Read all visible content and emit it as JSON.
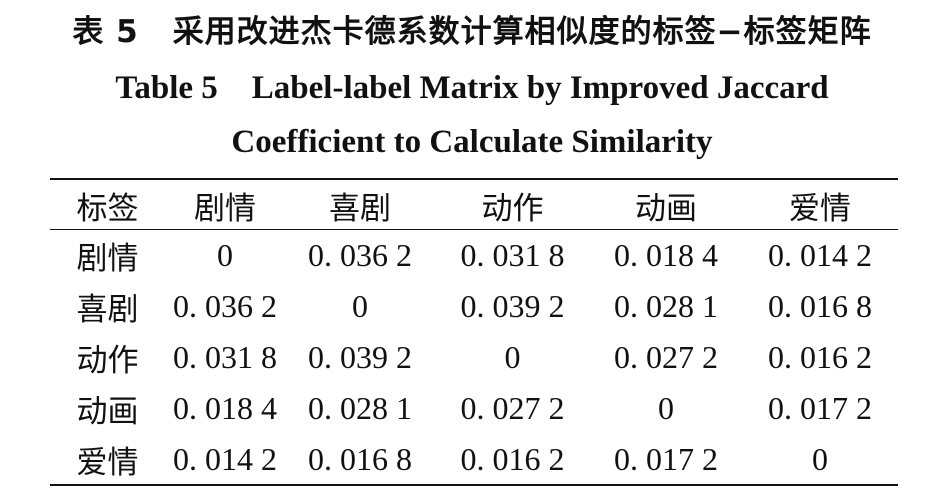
{
  "caption": {
    "zh_label": "表 5",
    "zh_title": "采用改进杰卡德系数计算相似度的标签−标签矩阵",
    "en_label": "Table 5",
    "en_title_line1": "Label-label Matrix by Improved Jaccard",
    "en_title_line2": "Coefficient to Calculate Similarity"
  },
  "table": {
    "header": [
      "标签",
      "剧情",
      "喜剧",
      "动作",
      "动画",
      "爱情"
    ],
    "rows": [
      {
        "label": "剧情",
        "values": [
          "0",
          "0. 036 2",
          "0. 031 8",
          "0. 018 4",
          "0. 014 2"
        ]
      },
      {
        "label": "喜剧",
        "values": [
          "0. 036 2",
          "0",
          "0. 039 2",
          "0. 028 1",
          "0. 016 8"
        ]
      },
      {
        "label": "动作",
        "values": [
          "0. 031 8",
          "0. 039 2",
          "0",
          "0. 027 2",
          "0. 016 2"
        ]
      },
      {
        "label": "动画",
        "values": [
          "0. 018 4",
          "0. 028 1",
          "0. 027 2",
          "0",
          "0. 017 2"
        ]
      },
      {
        "label": "爱情",
        "values": [
          "0. 014 2",
          "0. 016 8",
          "0. 016 2",
          "0. 017 2",
          "0"
        ]
      }
    ]
  }
}
